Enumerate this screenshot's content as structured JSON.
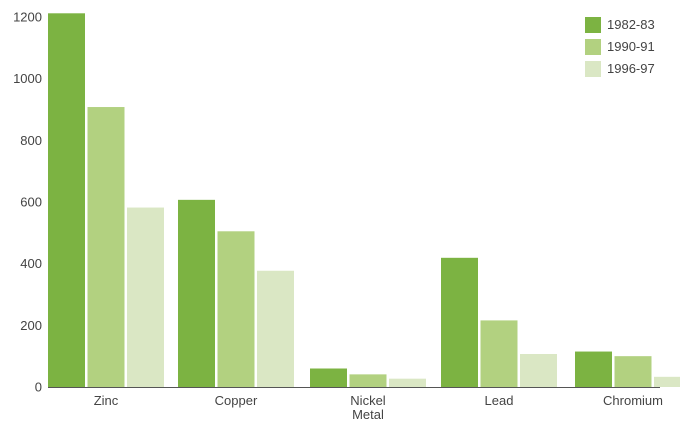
{
  "chart_data": {
    "type": "bar",
    "title": "",
    "xlabel": "",
    "ylabel": "",
    "categories": [
      "Zinc",
      "Copper",
      "Nickel Metal",
      "Lead",
      "Chromium"
    ],
    "category_lines": [
      [
        "Zinc"
      ],
      [
        "Copper"
      ],
      [
        "Nickel",
        "Metal"
      ],
      [
        "Lead"
      ],
      [
        "Chromium"
      ]
    ],
    "series": [
      {
        "name": "1982-83",
        "color": "#7cb342",
        "values": [
          1212,
          607,
          60,
          419,
          115
        ]
      },
      {
        "name": "1990-91",
        "color": "#b2d180",
        "values": [
          908,
          505,
          41,
          216,
          100
        ]
      },
      {
        "name": "1996-97",
        "color": "#dae7c4",
        "values": [
          582,
          377,
          27,
          107,
          33
        ]
      }
    ],
    "ylim": [
      0,
      1200
    ],
    "yticks": [
      0,
      200,
      400,
      600,
      800,
      1000,
      1200
    ],
    "grid": false,
    "legend_position": "top-right"
  }
}
